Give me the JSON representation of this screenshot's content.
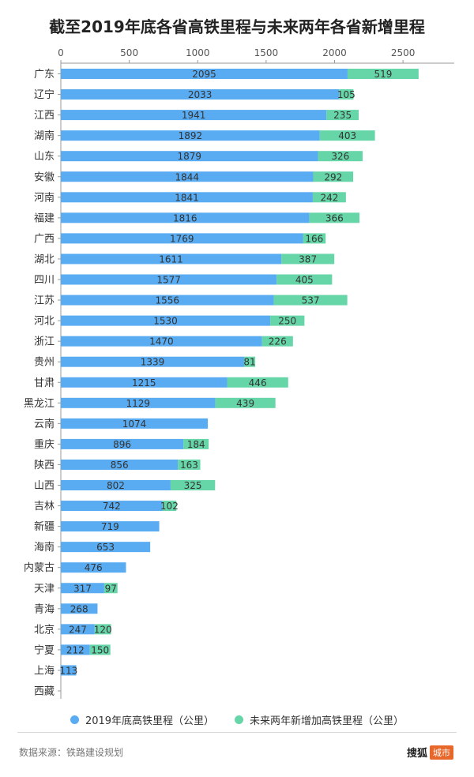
{
  "title": "截至2019年底各省高铁里程与未来两年各省新增里程",
  "source": "数据来源：铁路建设规划",
  "brand": {
    "name": "搜狐",
    "tag": "城市"
  },
  "colors": {
    "series1": "#5aacf2",
    "series2": "#66d6a8",
    "axis": "#999999",
    "grid": "#e6e6e6"
  },
  "chart_data": {
    "type": "bar",
    "orientation": "horizontal",
    "stacked": true,
    "title": "截至2019年底各省高铁里程与未来两年各省新增里程",
    "xlim": [
      0,
      2700
    ],
    "xticks": [
      0,
      500,
      1000,
      1500,
      2000,
      2500
    ],
    "xaxis_position": "top",
    "grid": false,
    "legend_position": "bottom",
    "categories": [
      "广东",
      "辽宁",
      "江西",
      "湖南",
      "山东",
      "安徽",
      "河南",
      "福建",
      "广西",
      "湖北",
      "四川",
      "江苏",
      "河北",
      "浙江",
      "贵州",
      "甘肃",
      "黑龙江",
      "云南",
      "重庆",
      "陕西",
      "山西",
      "吉林",
      "新疆",
      "海南",
      "内蒙古",
      "天津",
      "青海",
      "北京",
      "宁夏",
      "上海",
      "西藏"
    ],
    "series": [
      {
        "name": "2019年底高铁里程（公里）",
        "values": [
          2095,
          2033,
          1941,
          1892,
          1879,
          1844,
          1841,
          1816,
          1769,
          1611,
          1577,
          1556,
          1530,
          1470,
          1339,
          1215,
          1129,
          1074,
          896,
          856,
          802,
          742,
          719,
          653,
          476,
          317,
          268,
          247,
          212,
          113,
          0
        ]
      },
      {
        "name": "未来两年新增加高铁里程（公里）",
        "values": [
          519,
          105,
          235,
          403,
          326,
          292,
          242,
          366,
          166,
          387,
          405,
          537,
          250,
          226,
          81,
          446,
          439,
          0,
          184,
          163,
          325,
          102,
          0,
          0,
          0,
          97,
          0,
          120,
          150,
          0,
          0
        ]
      }
    ]
  }
}
